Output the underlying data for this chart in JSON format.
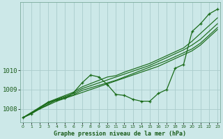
{
  "x": [
    0,
    1,
    2,
    3,
    4,
    5,
    6,
    7,
    8,
    9,
    10,
    11,
    12,
    13,
    14,
    15,
    16,
    17,
    18,
    19,
    20,
    21,
    22,
    23
  ],
  "line_wavy": [
    1007.55,
    1007.75,
    1008.05,
    1008.35,
    1008.45,
    1008.55,
    1008.85,
    1009.35,
    1009.75,
    1009.65,
    1009.25,
    1008.75,
    1008.7,
    1008.5,
    1008.4,
    1008.4,
    1008.8,
    1009.0,
    1010.1,
    1010.3,
    1012.0,
    1012.4,
    1012.9,
    1013.15
  ],
  "line_ref1": [
    1007.55,
    1007.75,
    1008.0,
    1008.2,
    1008.4,
    1008.55,
    1008.7,
    1008.85,
    1009.0,
    1009.15,
    1009.3,
    1009.45,
    1009.6,
    1009.75,
    1009.9,
    1010.05,
    1010.2,
    1010.4,
    1010.6,
    1010.8,
    1011.0,
    1011.3,
    1011.7,
    1012.1
  ],
  "line_ref2": [
    1007.55,
    1007.78,
    1008.01,
    1008.24,
    1008.47,
    1008.6,
    1008.73,
    1008.96,
    1009.09,
    1009.22,
    1009.35,
    1009.48,
    1009.65,
    1009.82,
    1009.99,
    1010.16,
    1010.33,
    1010.5,
    1010.7,
    1010.9,
    1011.1,
    1011.4,
    1011.8,
    1012.2
  ],
  "line_ref3": [
    1007.55,
    1007.8,
    1008.05,
    1008.3,
    1008.5,
    1008.65,
    1008.8,
    1009.05,
    1009.2,
    1009.35,
    1009.5,
    1009.65,
    1009.8,
    1009.95,
    1010.1,
    1010.25,
    1010.45,
    1010.65,
    1010.85,
    1011.05,
    1011.3,
    1011.6,
    1012.0,
    1012.4
  ],
  "line_ref4": [
    1007.55,
    1007.82,
    1008.09,
    1008.36,
    1008.53,
    1008.7,
    1008.87,
    1009.14,
    1009.31,
    1009.48,
    1009.65,
    1009.72,
    1009.9,
    1010.05,
    1010.2,
    1010.35,
    1010.55,
    1010.75,
    1010.95,
    1011.15,
    1011.5,
    1011.9,
    1012.3,
    1012.7
  ],
  "ylim_min": 1007.3,
  "ylim_max": 1013.5,
  "ytick_positions": [
    1008,
    1009,
    1010
  ],
  "ytick_labels": [
    "1008",
    "1009",
    "1010"
  ],
  "bg_color": "#cce8e8",
  "line_color": "#1a6b1a",
  "grid_color": "#aacccc",
  "label_color": "#1a5c1a",
  "bottom_label": "Graphe pression niveau de la mer (hPa)"
}
